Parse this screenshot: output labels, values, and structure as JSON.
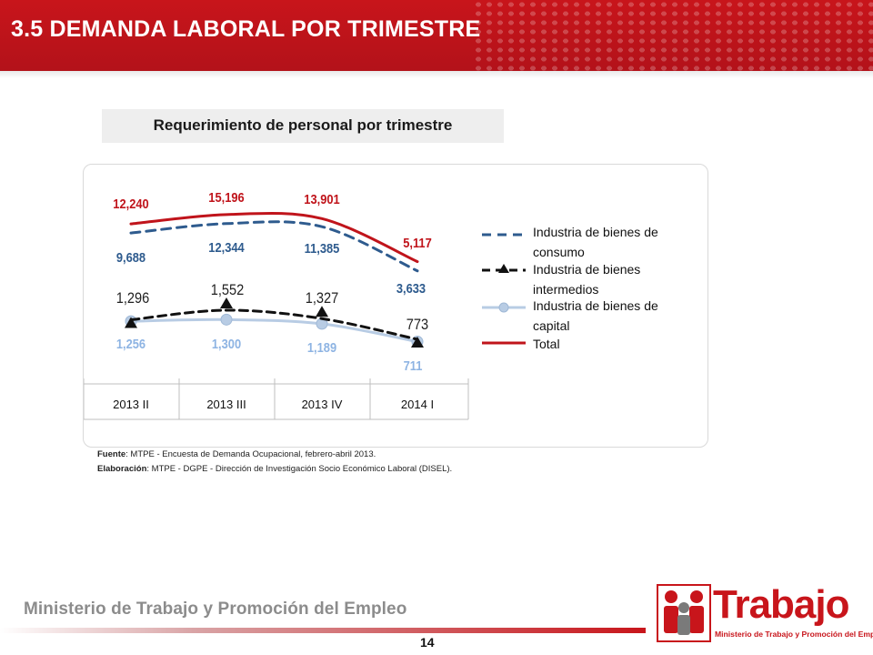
{
  "slide": {
    "title": "3.5 DEMANDA LABORAL POR TRIMESTRE",
    "subtitle": "Requerimiento de personal por trimestre",
    "source_label": "Fuente",
    "source_text": ": MTPE - Encuesta de Demanda Ocupacional, febrero-abril 2013.",
    "credit_label": "Elaboración",
    "credit_text": ":  MTPE - DGPE - Dirección de Investigación Socio Económico Laboral (DISEL).",
    "ministry": "Ministerio de Trabajo y Promoción del Empleo",
    "page_number": "14",
    "logo_word": "Trabajo",
    "logo_sub": "Ministerio de Trabajo y Promoción del Empleo"
  },
  "colors": {
    "brand_red": "#c8151b",
    "consumo": "#2e5b8e",
    "intermedios": "#111111",
    "capital": "#b8cce4",
    "capital_label": "#8eb4e3",
    "total": "#c0141b"
  },
  "chart_data": {
    "type": "line",
    "categories": [
      "2013 II",
      "2013 III",
      "2013 IV",
      "2014 I"
    ],
    "series": [
      {
        "name": "Industria de bienes de consumo",
        "values": [
          9688,
          12344,
          11385,
          3633
        ],
        "labels": [
          "9,688",
          "12,344",
          "11,385",
          "3,633"
        ],
        "style": "dashed",
        "marker": "none"
      },
      {
        "name": "Industria de bienes intermedios",
        "values": [
          1296,
          1552,
          1327,
          773
        ],
        "labels": [
          "1,296",
          "1,552",
          "1,327",
          "773"
        ],
        "style": "dashed",
        "marker": "triangle"
      },
      {
        "name": "Industria de bienes de capital",
        "values": [
          1256,
          1300,
          1189,
          711
        ],
        "labels": [
          "1,256",
          "1,300",
          "1,189",
          "711"
        ],
        "style": "solid",
        "marker": "circle"
      },
      {
        "name": "Total",
        "values": [
          12240,
          15196,
          13901,
          5117
        ],
        "labels": [
          "12,240",
          "15,196",
          "13,901",
          "5,117"
        ],
        "style": "solid",
        "marker": "none"
      }
    ],
    "legend": [
      {
        "lines": [
          "Industria de bienes de",
          "consumo"
        ]
      },
      {
        "lines": [
          "Industria de bienes",
          "intermedios"
        ]
      },
      {
        "lines": [
          "Industria de bienes de",
          "capital"
        ]
      },
      {
        "lines": [
          "Total"
        ]
      }
    ],
    "legend_position": "right",
    "grid": false
  }
}
